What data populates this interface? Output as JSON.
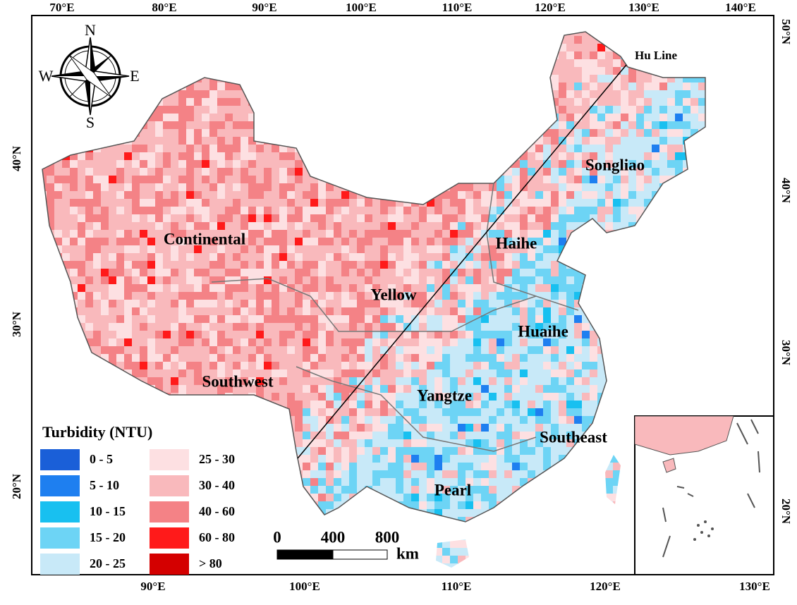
{
  "map": {
    "top_axis": [
      "70°E",
      "80°E",
      "90°E",
      "100°E",
      "110°E",
      "120°E",
      "130°E",
      "140°E"
    ],
    "left_axis": [
      "40°N",
      "30°N",
      "20°N"
    ],
    "right_axis": [
      "50°N",
      "40°N",
      "30°N",
      "20°N"
    ],
    "bottom_axis": [
      "90°E",
      "100°E",
      "110°E",
      "120°E",
      "130°E"
    ],
    "compass": {
      "n": "N",
      "w": "W",
      "e": "E",
      "s": "S"
    },
    "hu_line": "Hu Line",
    "basins": [
      "Songliao",
      "Continental",
      "Haihe",
      "Yellow",
      "Huaihe",
      "Southwest",
      "Yangtze",
      "Southeast",
      "Pearl"
    ],
    "legend": {
      "title": "Turbidity (NTU)",
      "items": [
        {
          "label": "0 - 5",
          "color": "#1a5fd8"
        },
        {
          "label": "5 - 10",
          "color": "#1e7ff0"
        },
        {
          "label": "10 - 15",
          "color": "#18c0f0"
        },
        {
          "label": "15 - 20",
          "color": "#6dd4f5"
        },
        {
          "label": "20 - 25",
          "color": "#c8e9f8"
        },
        {
          "label": "25 - 30",
          "color": "#fde0e2"
        },
        {
          "label": "30 - 40",
          "color": "#f9b9bc"
        },
        {
          "label": "40 - 60",
          "color": "#f48286"
        },
        {
          "label": "60 - 80",
          "color": "#ff1a1a"
        },
        {
          "label": "> 80",
          "color": "#d40000"
        }
      ]
    },
    "scale_bar": {
      "ticks": [
        "0",
        "400",
        "800"
      ],
      "unit": "km"
    }
  }
}
